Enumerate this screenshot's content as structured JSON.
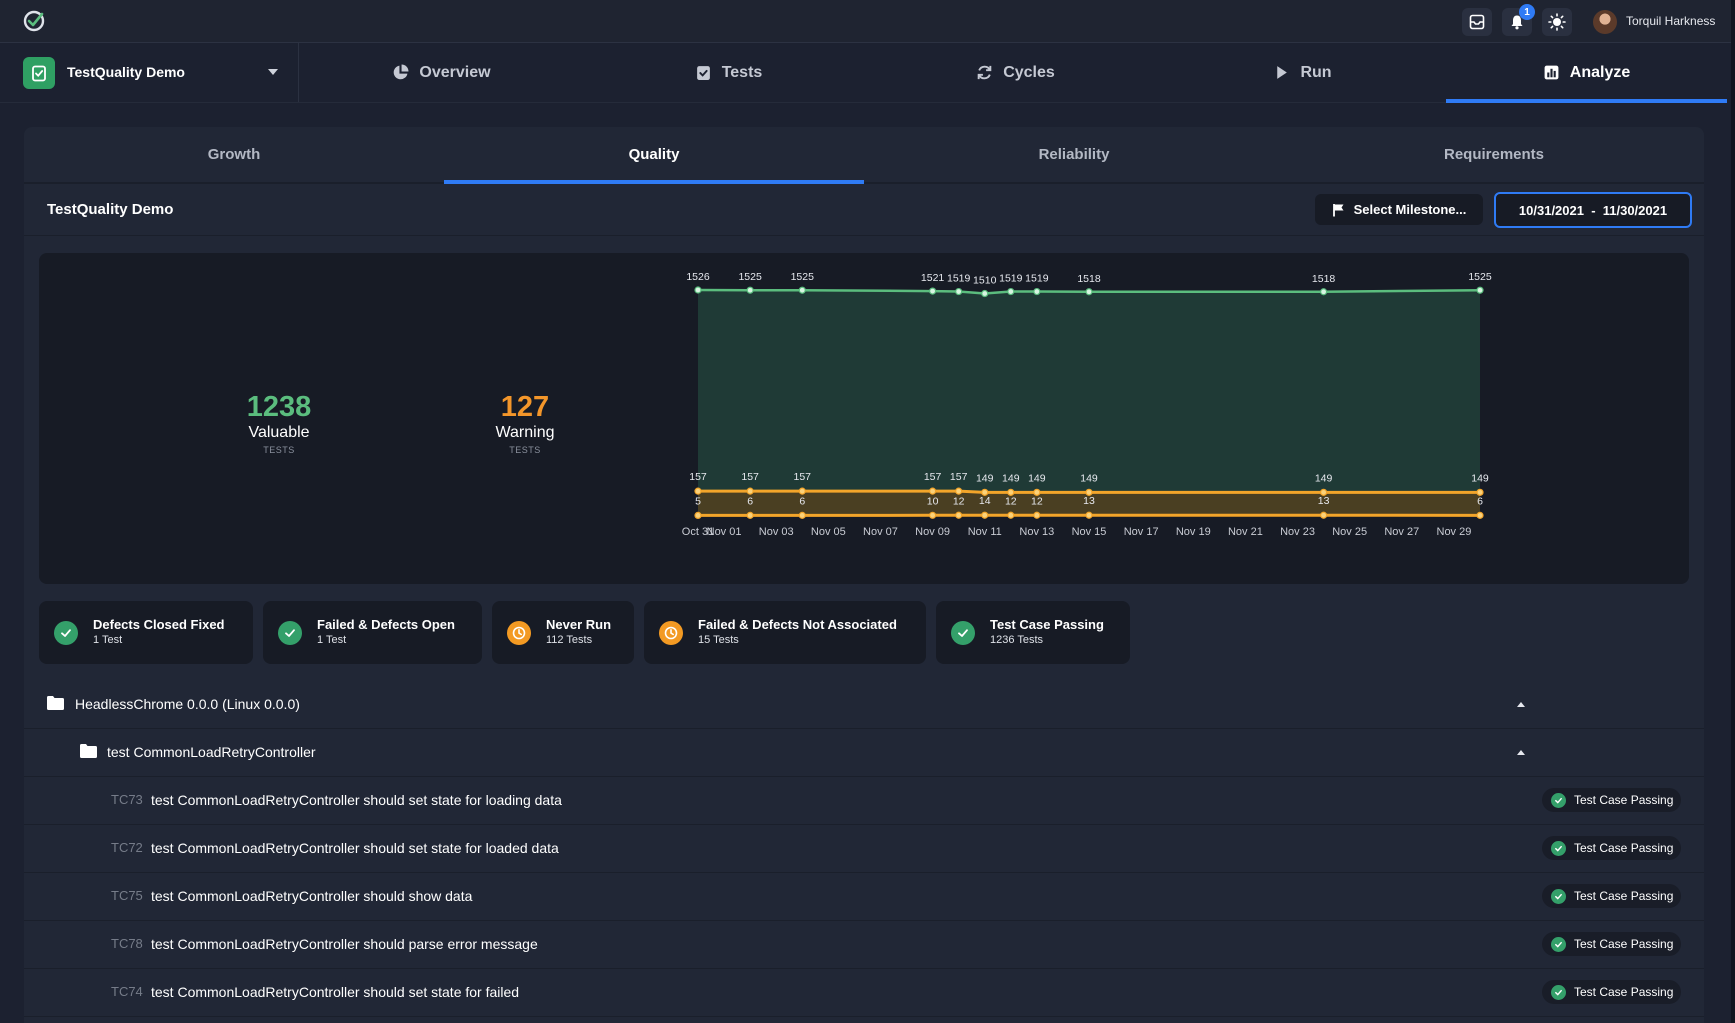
{
  "topbar": {
    "notification_count": "1",
    "user_name": "Torquil Harkness",
    "icons": [
      "app-logo-icon",
      "inbox-icon",
      "bell-icon",
      "brightness-icon"
    ]
  },
  "project": {
    "name": "TestQuality Demo"
  },
  "nav": {
    "tabs": [
      {
        "label": "Overview",
        "icon": "pie-chart-icon"
      },
      {
        "label": "Tests",
        "icon": "clipboard-check-icon"
      },
      {
        "label": "Cycles",
        "icon": "refresh-icon"
      },
      {
        "label": "Run",
        "icon": "play-icon"
      },
      {
        "label": "Analyze",
        "icon": "bar-chart-icon",
        "active": true
      }
    ]
  },
  "subtabs": [
    {
      "label": "Growth"
    },
    {
      "label": "Quality",
      "active": true
    },
    {
      "label": "Reliability"
    },
    {
      "label": "Requirements"
    }
  ],
  "report": {
    "title": "TestQuality Demo",
    "milestone_label": "Select Milestone...",
    "date_range": "10/31/2021  -  11/30/2021"
  },
  "stats": [
    {
      "value": "1238",
      "label": "Valuable",
      "sub": "TESTS",
      "color": "#5bbd7e"
    },
    {
      "value": "127",
      "label": "Warning",
      "sub": "TESTS",
      "color": "#f3962a"
    }
  ],
  "chart_data": {
    "type": "area",
    "x_ticks": [
      "Oct 31",
      "Nov 01",
      "Nov 03",
      "Nov 05",
      "Nov 07",
      "Nov 09",
      "Nov 11",
      "Nov 13",
      "Nov 15",
      "Nov 17",
      "Nov 19",
      "Nov 21",
      "Nov 23",
      "Nov 25",
      "Nov 27",
      "Nov 29"
    ],
    "x": [
      "Oct 31",
      "Nov 02",
      "Nov 04",
      "Nov 09",
      "Nov 10",
      "Nov 11",
      "Nov 12",
      "Nov 13",
      "Nov 15",
      "Nov 24",
      "Nov 30"
    ],
    "series": [
      {
        "name": "",
        "color": "#5bbd7e",
        "values": [
          1526,
          1525,
          1525,
          1521,
          1519,
          1510,
          1519,
          1519,
          1518,
          1518,
          1525
        ],
        "labels": [
          "1526",
          "1525",
          "1525",
          "1521",
          "1519",
          "1510",
          "1519",
          "1519",
          "1518",
          "1518",
          "1525"
        ]
      },
      {
        "name": "",
        "color": "#f3a52a",
        "values": [
          157,
          157,
          157,
          157,
          157,
          149,
          149,
          149,
          149,
          149,
          149
        ],
        "labels": [
          "157",
          "157",
          "157",
          "157",
          "157",
          "149",
          "149",
          "149",
          "149",
          "149",
          "149"
        ]
      },
      {
        "name": "",
        "color": "#f3a52a",
        "values": [
          5,
          6,
          6,
          10,
          12,
          14,
          12,
          12,
          13,
          13,
          6
        ],
        "labels": [
          "5",
          "6",
          "6",
          "10",
          "12",
          "14",
          "12",
          "12",
          "13",
          "13",
          "6"
        ]
      }
    ],
    "grid": false
  },
  "chips": [
    {
      "title": "Defects Closed Fixed",
      "sub": "1 Test",
      "status": "check",
      "color": "#34a06a"
    },
    {
      "title": "Failed & Defects Open",
      "sub": "1 Test",
      "status": "check",
      "color": "#34a06a"
    },
    {
      "title": "Never Run",
      "sub": "112 Tests",
      "status": "clock",
      "color": "#f39a23"
    },
    {
      "title": "Failed & Defects Not Associated",
      "sub": "15 Tests",
      "status": "clock",
      "color": "#f39a23"
    },
    {
      "title": "Test Case Passing",
      "sub": "1236 Tests",
      "status": "check",
      "color": "#34a06a"
    }
  ],
  "tree": {
    "root": "HeadlessChrome 0.0.0 (Linux 0.0.0)",
    "child": "test CommonLoadRetryController",
    "cases": [
      {
        "id": "TC73",
        "name": "test CommonLoadRetryController should set state for loading data",
        "status": "Test Case Passing"
      },
      {
        "id": "TC72",
        "name": "test CommonLoadRetryController should set state for loaded data",
        "status": "Test Case Passing"
      },
      {
        "id": "TC75",
        "name": "test CommonLoadRetryController should show data",
        "status": "Test Case Passing"
      },
      {
        "id": "TC78",
        "name": "test CommonLoadRetryController should parse error message",
        "status": "Test Case Passing"
      },
      {
        "id": "TC74",
        "name": "test CommonLoadRetryController should set state for failed",
        "status": "Test Case Passing"
      }
    ]
  }
}
